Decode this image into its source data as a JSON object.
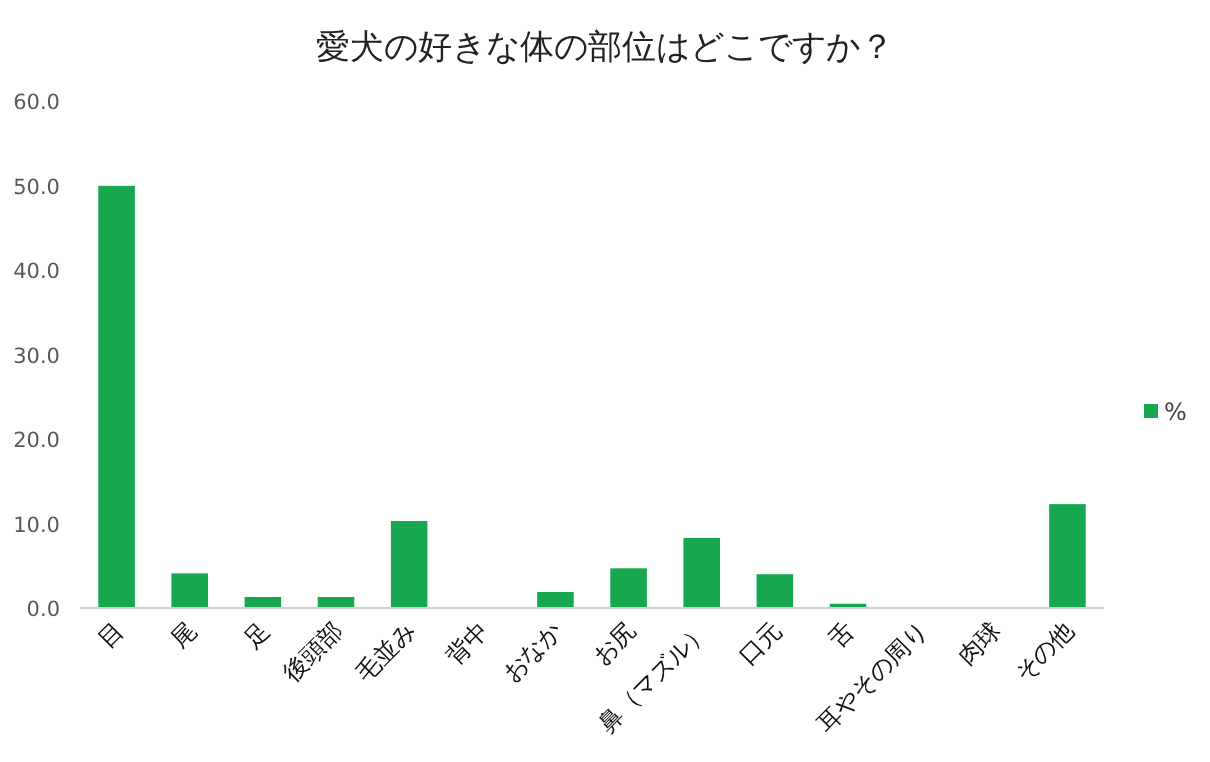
{
  "chart_data": {
    "type": "bar",
    "title": "愛犬の好きな体の部位はどこですか？",
    "categories": [
      "目",
      "尾",
      "足",
      "後頭部",
      "毛並み",
      "背中",
      "おなか",
      "お尻",
      "鼻（マズル）",
      "口元",
      "舌",
      "耳やその周り",
      "肉球",
      "その他"
    ],
    "series": [
      {
        "name": "%",
        "color": "#17a84f",
        "values": [
          50.0,
          4.1,
          1.3,
          1.3,
          10.3,
          0,
          1.9,
          4.7,
          8.3,
          4.0,
          0.5,
          0,
          0,
          12.3
        ]
      }
    ],
    "ylim": [
      0,
      60
    ],
    "yticks": [
      {
        "value": 0,
        "label": "0.0"
      },
      {
        "value": 10,
        "label": "10.0"
      },
      {
        "value": 20,
        "label": "20.0"
      },
      {
        "value": 30,
        "label": "30.0"
      },
      {
        "value": 40,
        "label": "40.0"
      },
      {
        "value": 50,
        "label": "50.0"
      },
      {
        "value": 60,
        "label": "60.0"
      }
    ],
    "grid": false,
    "legend": "right"
  }
}
